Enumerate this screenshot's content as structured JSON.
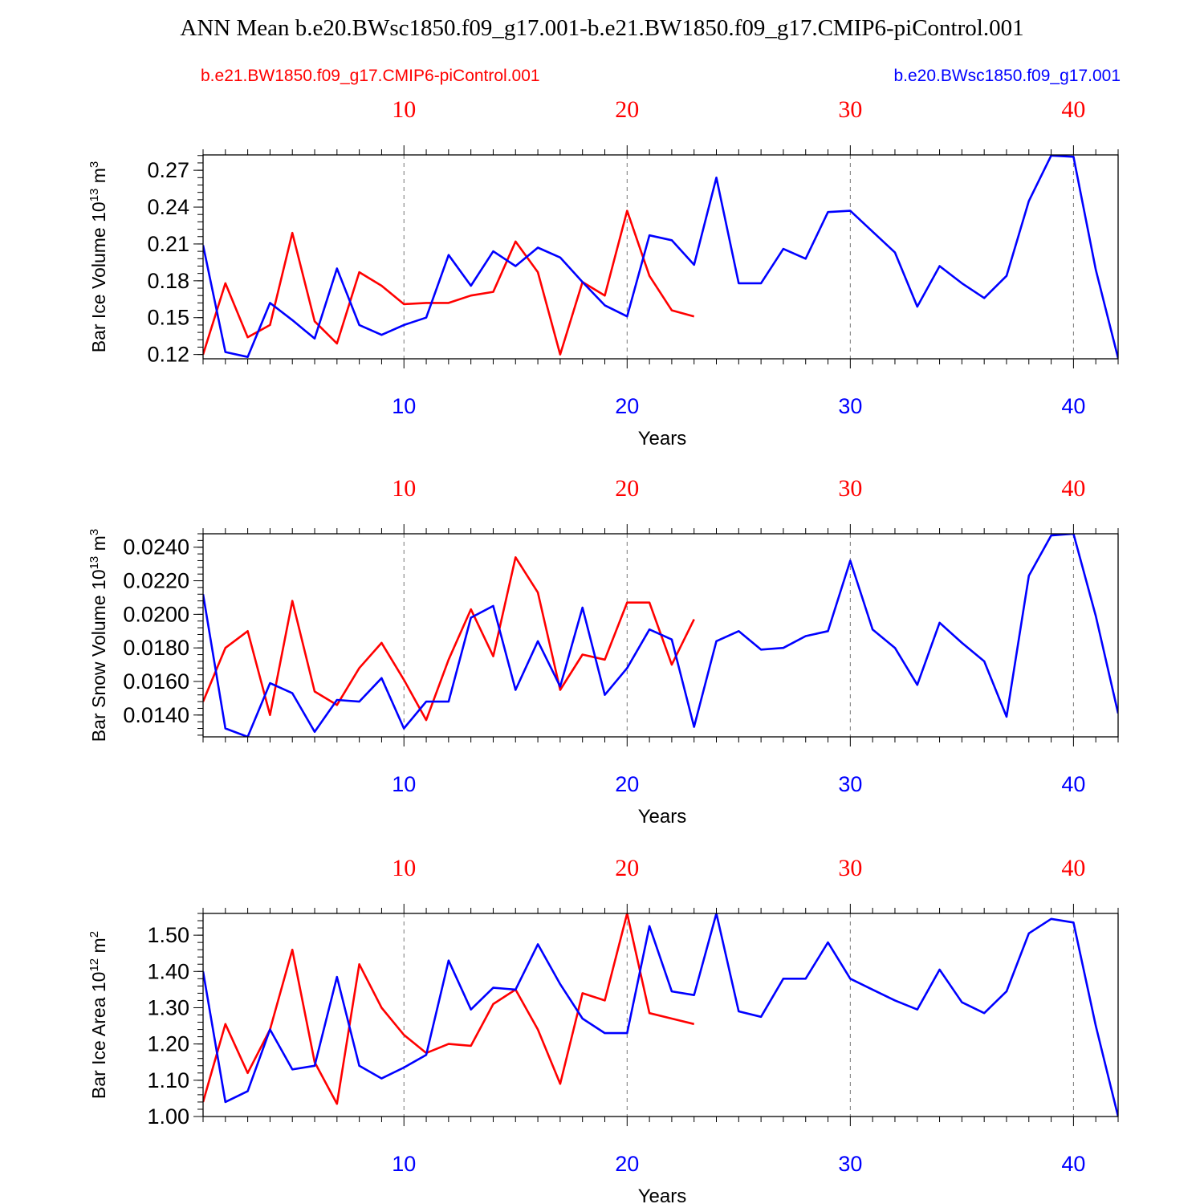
{
  "title": "ANN Mean b.e20.BWsc1850.f09_g17.001-b.e21.BW1850.f09_g17.CMIP6-piControl.001",
  "legend": {
    "red_case": "b.e21.BW1850.f09_g17.CMIP6-piControl.001",
    "blue_case": "b.e20.BWsc1850.f09_g17.001"
  },
  "colors": {
    "red": "#ff0000",
    "blue": "#0000ff",
    "frame": "#000000",
    "grid": "#777777"
  },
  "chart_data": [
    {
      "type": "line",
      "ylabel": "Bar Ice Volume 10",
      "ylabel_exp": "13",
      "ylabel_unit": " m",
      "ylabel_unit_exp": "3",
      "xlabel": "Years",
      "xlim": [
        1,
        42
      ],
      "ylim": [
        0.1165,
        0.2825
      ],
      "yticks": [
        0.12,
        0.15,
        0.18,
        0.21,
        0.24,
        0.27
      ],
      "ytick_labels": [
        "0.12",
        "0.15",
        "0.18",
        "0.21",
        "0.24",
        "0.27"
      ],
      "yminor_step": 0.006,
      "xticks": [
        10,
        20,
        30,
        40
      ],
      "xtick_labels": [
        "10",
        "20",
        "30",
        "40"
      ],
      "series": [
        {
          "name": "b.e21.BW1850.f09_g17.CMIP6-piControl.001",
          "color": "red",
          "values": [
            0.12,
            0.178,
            0.134,
            0.144,
            0.219,
            0.147,
            0.129,
            0.187,
            0.176,
            0.161,
            0.162,
            0.162,
            0.168,
            0.171,
            0.212,
            0.187,
            0.12,
            0.179,
            0.168,
            0.237,
            0.184,
            0.156,
            0.151
          ]
        },
        {
          "name": "b.e20.BWsc1850.f09_g17.001",
          "color": "blue",
          "values": [
            0.209,
            0.122,
            0.118,
            0.162,
            0.148,
            0.133,
            0.19,
            0.144,
            0.136,
            0.144,
            0.15,
            0.201,
            0.176,
            0.204,
            0.192,
            0.207,
            0.199,
            0.179,
            0.16,
            0.151,
            0.217,
            0.213,
            0.193,
            0.264,
            0.178,
            0.178,
            0.206,
            0.198,
            0.236,
            0.237,
            0.22,
            0.203,
            0.159,
            0.192,
            0.178,
            0.166,
            0.184,
            0.245,
            0.282,
            0.281,
            0.189,
            0.117
          ]
        }
      ]
    },
    {
      "type": "line",
      "ylabel": "Bar Snow Volume 10",
      "ylabel_exp": "13",
      "ylabel_unit": " m",
      "ylabel_unit_exp": "3",
      "xlabel": "Years",
      "xlim": [
        1,
        42
      ],
      "ylim": [
        0.0127,
        0.0248
      ],
      "yticks": [
        0.014,
        0.016,
        0.018,
        0.02,
        0.022,
        0.024
      ],
      "ytick_labels": [
        "0.0140",
        "0.0160",
        "0.0180",
        "0.0200",
        "0.0220",
        "0.0240"
      ],
      "yminor_step": 0.0004,
      "xticks": [
        10,
        20,
        30,
        40
      ],
      "xtick_labels": [
        "10",
        "20",
        "30",
        "40"
      ],
      "series": [
        {
          "name": "b.e21.BW1850.f09_g17.CMIP6-piControl.001",
          "color": "red",
          "values": [
            0.0148,
            0.018,
            0.019,
            0.014,
            0.0208,
            0.0154,
            0.0146,
            0.0168,
            0.0183,
            0.0161,
            0.0137,
            0.0173,
            0.0203,
            0.0175,
            0.0234,
            0.0213,
            0.0155,
            0.0176,
            0.0173,
            0.0207,
            0.0207,
            0.017,
            0.0197
          ]
        },
        {
          "name": "b.e20.BWsc1850.f09_g17.001",
          "color": "blue",
          "values": [
            0.0212,
            0.0132,
            0.0127,
            0.0159,
            0.0153,
            0.013,
            0.0149,
            0.0148,
            0.0162,
            0.0132,
            0.0148,
            0.0148,
            0.0198,
            0.0205,
            0.0155,
            0.0184,
            0.0157,
            0.0204,
            0.0152,
            0.0168,
            0.0191,
            0.0185,
            0.0133,
            0.0184,
            0.019,
            0.0179,
            0.018,
            0.0187,
            0.019,
            0.0232,
            0.0191,
            0.018,
            0.0158,
            0.0195,
            0.0183,
            0.0172,
            0.0139,
            0.0223,
            0.0247,
            0.0248,
            0.0199,
            0.0141
          ]
        }
      ]
    },
    {
      "type": "line",
      "ylabel": "Bar Ice Area 10",
      "ylabel_exp": "12",
      "ylabel_unit": " m",
      "ylabel_unit_exp": "2",
      "xlabel": "Years",
      "xlim": [
        1,
        42
      ],
      "ylim": [
        1.0,
        1.56
      ],
      "yticks": [
        1.0,
        1.1,
        1.2,
        1.3,
        1.4,
        1.5
      ],
      "ytick_labels": [
        "1.00",
        "1.10",
        "1.20",
        "1.30",
        "1.40",
        "1.50"
      ],
      "yminor_step": 0.02,
      "xticks": [
        10,
        20,
        30,
        40
      ],
      "xtick_labels": [
        "10",
        "20",
        "30",
        "40"
      ],
      "series": [
        {
          "name": "b.e21.BW1850.f09_g17.CMIP6-piControl.001",
          "color": "red",
          "values": [
            1.04,
            1.255,
            1.12,
            1.24,
            1.46,
            1.15,
            1.035,
            1.42,
            1.3,
            1.225,
            1.175,
            1.2,
            1.195,
            1.31,
            1.35,
            1.24,
            1.09,
            1.34,
            1.32,
            1.56,
            1.285,
            1.27,
            1.255
          ]
        },
        {
          "name": "b.e20.BWsc1850.f09_g17.001",
          "color": "blue",
          "values": [
            1.4,
            1.04,
            1.07,
            1.24,
            1.13,
            1.14,
            1.385,
            1.14,
            1.105,
            1.135,
            1.17,
            1.43,
            1.295,
            1.355,
            1.35,
            1.475,
            1.365,
            1.27,
            1.23,
            1.23,
            1.525,
            1.345,
            1.335,
            1.56,
            1.29,
            1.275,
            1.38,
            1.38,
            1.48,
            1.38,
            1.35,
            1.32,
            1.295,
            1.405,
            1.315,
            1.285,
            1.345,
            1.505,
            1.545,
            1.535,
            1.25,
            1.0
          ]
        }
      ]
    }
  ]
}
